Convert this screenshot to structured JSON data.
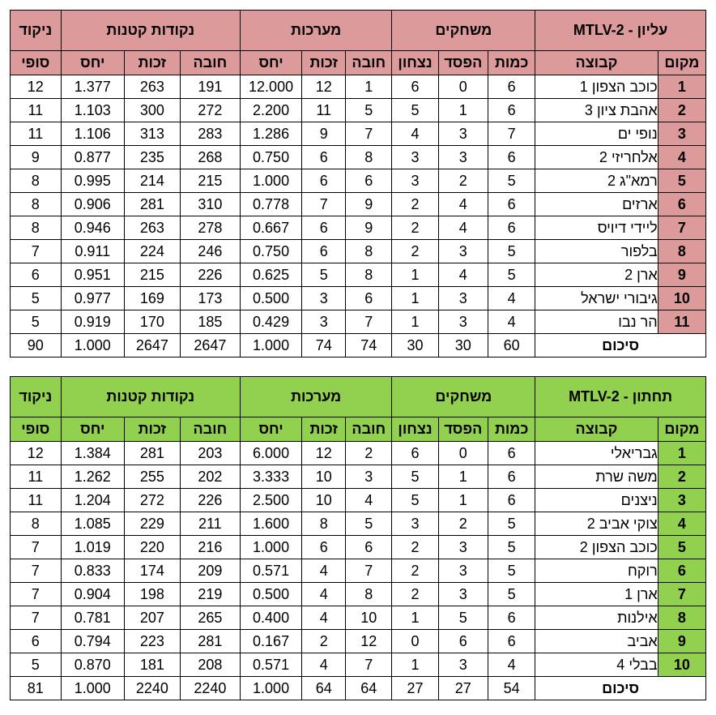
{
  "upper": {
    "title": "עליון  -  MTLV-2",
    "groups": {
      "games": "משחקים",
      "sets": "מערכות",
      "points": "נקודות קטנות",
      "final": "ניקוד"
    },
    "columns": {
      "rank": "מקום",
      "team": "קבוצה",
      "played": "כמות",
      "lost": "הפסד",
      "won": "נצחון",
      "against": "חובה",
      "for": "זכות",
      "ratio": "יחס",
      "final": "סופי"
    },
    "rows": [
      {
        "rank": "1",
        "team": "כוכב הצפון 1",
        "played": "6",
        "lost": "0",
        "won": "6",
        "sets_against": "1",
        "sets_for": "12",
        "sets_ratio": "12.000",
        "pts_against": "191",
        "pts_for": "263",
        "pts_ratio": "1.377",
        "final": "12"
      },
      {
        "rank": "2",
        "team": "אהבת ציון 3",
        "played": "6",
        "lost": "1",
        "won": "5",
        "sets_against": "5",
        "sets_for": "11",
        "sets_ratio": "2.200",
        "pts_against": "272",
        "pts_for": "300",
        "pts_ratio": "1.103",
        "final": "11"
      },
      {
        "rank": "3",
        "team": "נופי ים",
        "played": "7",
        "lost": "3",
        "won": "4",
        "sets_against": "7",
        "sets_for": "9",
        "sets_ratio": "1.286",
        "pts_against": "283",
        "pts_for": "313",
        "pts_ratio": "1.106",
        "final": "11"
      },
      {
        "rank": "4",
        "team": "אלחריזי 2",
        "played": "6",
        "lost": "3",
        "won": "3",
        "sets_against": "8",
        "sets_for": "6",
        "sets_ratio": "0.750",
        "pts_against": "268",
        "pts_for": "235",
        "pts_ratio": "0.877",
        "final": "9"
      },
      {
        "rank": "5",
        "team": "רמא\"ג 2",
        "played": "5",
        "lost": "2",
        "won": "3",
        "sets_against": "6",
        "sets_for": "6",
        "sets_ratio": "1.000",
        "pts_against": "215",
        "pts_for": "214",
        "pts_ratio": "0.995",
        "final": "8"
      },
      {
        "rank": "6",
        "team": "ארזים",
        "played": "6",
        "lost": "4",
        "won": "2",
        "sets_against": "9",
        "sets_for": "7",
        "sets_ratio": "0.778",
        "pts_against": "310",
        "pts_for": "281",
        "pts_ratio": "0.906",
        "final": "8"
      },
      {
        "rank": "7",
        "team": "ליידי דיויס",
        "played": "6",
        "lost": "4",
        "won": "2",
        "sets_against": "9",
        "sets_for": "6",
        "sets_ratio": "0.667",
        "pts_against": "278",
        "pts_for": "263",
        "pts_ratio": "0.946",
        "final": "8"
      },
      {
        "rank": "8",
        "team": "בלפור",
        "played": "5",
        "lost": "3",
        "won": "2",
        "sets_against": "8",
        "sets_for": "6",
        "sets_ratio": "0.750",
        "pts_against": "246",
        "pts_for": "224",
        "pts_ratio": "0.911",
        "final": "7"
      },
      {
        "rank": "9",
        "team": "ארן 2",
        "played": "5",
        "lost": "4",
        "won": "1",
        "sets_against": "8",
        "sets_for": "5",
        "sets_ratio": "0.625",
        "pts_against": "226",
        "pts_for": "215",
        "pts_ratio": "0.951",
        "final": "6"
      },
      {
        "rank": "10",
        "team": "גיבורי ישראל",
        "played": "4",
        "lost": "3",
        "won": "1",
        "sets_against": "6",
        "sets_for": "3",
        "sets_ratio": "0.500",
        "pts_against": "173",
        "pts_for": "169",
        "pts_ratio": "0.977",
        "final": "5"
      },
      {
        "rank": "11",
        "team": "הר נבו",
        "played": "4",
        "lost": "3",
        "won": "1",
        "sets_against": "7",
        "sets_for": "3",
        "sets_ratio": "0.429",
        "pts_against": "185",
        "pts_for": "170",
        "pts_ratio": "0.919",
        "final": "5"
      }
    ],
    "summary": {
      "label": "סיכום",
      "played": "60",
      "lost": "30",
      "won": "30",
      "sets_against": "74",
      "sets_for": "74",
      "sets_ratio": "1.000",
      "pts_against": "2647",
      "pts_for": "2647",
      "pts_ratio": "1.000",
      "final": "90"
    },
    "accent": "#dc9a9b"
  },
  "lower": {
    "title": "תחתון  -  MTLV-2",
    "groups": {
      "games": "משחקים",
      "sets": "מערכות",
      "points": "נקודות קטנות",
      "final": "ניקוד"
    },
    "columns": {
      "rank": "מקום",
      "team": "קבוצה",
      "played": "כמות",
      "lost": "הפסד",
      "won": "נצחון",
      "against": "חובה",
      "for": "זכות",
      "ratio": "יחס",
      "final": "סופי"
    },
    "rows": [
      {
        "rank": "1",
        "team": "גבריאלי",
        "played": "6",
        "lost": "0",
        "won": "6",
        "sets_against": "2",
        "sets_for": "12",
        "sets_ratio": "6.000",
        "pts_against": "203",
        "pts_for": "281",
        "pts_ratio": "1.384",
        "final": "12"
      },
      {
        "rank": "2",
        "team": "משה שרת",
        "played": "6",
        "lost": "1",
        "won": "5",
        "sets_against": "3",
        "sets_for": "10",
        "sets_ratio": "3.333",
        "pts_against": "202",
        "pts_for": "255",
        "pts_ratio": "1.262",
        "final": "11"
      },
      {
        "rank": "3",
        "team": "ניצנים",
        "played": "6",
        "lost": "1",
        "won": "5",
        "sets_against": "4",
        "sets_for": "10",
        "sets_ratio": "2.500",
        "pts_against": "226",
        "pts_for": "272",
        "pts_ratio": "1.204",
        "final": "11"
      },
      {
        "rank": "4",
        "team": "צוקי אביב 2",
        "played": "5",
        "lost": "2",
        "won": "3",
        "sets_against": "5",
        "sets_for": "8",
        "sets_ratio": "1.600",
        "pts_against": "211",
        "pts_for": "229",
        "pts_ratio": "1.085",
        "final": "8"
      },
      {
        "rank": "5",
        "team": "כוכב הצפון 2",
        "played": "5",
        "lost": "3",
        "won": "2",
        "sets_against": "6",
        "sets_for": "6",
        "sets_ratio": "1.000",
        "pts_against": "216",
        "pts_for": "220",
        "pts_ratio": "1.019",
        "final": "7"
      },
      {
        "rank": "6",
        "team": "רוקח",
        "played": "5",
        "lost": "3",
        "won": "2",
        "sets_against": "7",
        "sets_for": "4",
        "sets_ratio": "0.571",
        "pts_against": "209",
        "pts_for": "174",
        "pts_ratio": "0.833",
        "final": "7"
      },
      {
        "rank": "7",
        "team": "ארן 1",
        "played": "5",
        "lost": "3",
        "won": "2",
        "sets_against": "8",
        "sets_for": "4",
        "sets_ratio": "0.500",
        "pts_against": "219",
        "pts_for": "198",
        "pts_ratio": "0.904",
        "final": "7"
      },
      {
        "rank": "8",
        "team": "אילנות",
        "played": "6",
        "lost": "5",
        "won": "1",
        "sets_against": "10",
        "sets_for": "4",
        "sets_ratio": "0.400",
        "pts_against": "265",
        "pts_for": "207",
        "pts_ratio": "0.781",
        "final": "7"
      },
      {
        "rank": "9",
        "team": "אביב",
        "played": "6",
        "lost": "6",
        "won": "0",
        "sets_against": "12",
        "sets_for": "2",
        "sets_ratio": "0.167",
        "pts_against": "281",
        "pts_for": "223",
        "pts_ratio": "0.794",
        "final": "6"
      },
      {
        "rank": "10",
        "team": "בבלי 4",
        "played": "4",
        "lost": "3",
        "won": "1",
        "sets_against": "7",
        "sets_for": "4",
        "sets_ratio": "0.571",
        "pts_against": "208",
        "pts_for": "181",
        "pts_ratio": "0.870",
        "final": "5"
      }
    ],
    "summary": {
      "label": "סיכום",
      "played": "54",
      "lost": "27",
      "won": "27",
      "sets_against": "64",
      "sets_for": "64",
      "sets_ratio": "1.000",
      "pts_against": "2240",
      "pts_for": "2240",
      "pts_ratio": "1.000",
      "final": "81"
    },
    "accent": "#92d050"
  }
}
